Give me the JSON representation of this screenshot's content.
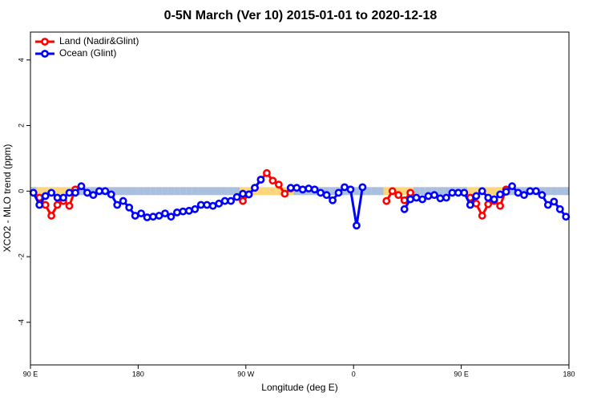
{
  "chart_data": {
    "type": "line",
    "title": "0-5N March (Ver 10)   2015-01-01 to 2020-12-18",
    "x_label": "Longitude (deg E)",
    "y_label": "XCO2 - MLO trend (ppm)",
    "x": [
      92.5,
      97.5,
      102.5,
      107.5,
      112.5,
      117.5,
      122.5,
      127.5,
      132.5,
      137.5,
      142.5,
      147.5,
      152.5,
      157.5,
      162.5,
      167.5,
      172.5,
      177.5,
      182.5,
      187.5,
      192.5,
      197.5,
      202.5,
      207.5,
      212.5,
      217.5,
      222.5,
      227.5,
      232.5,
      237.5,
      242.5,
      247.5,
      252.5,
      257.5,
      262.5,
      267.5,
      272.5,
      277.5,
      282.5,
      287.5,
      292.5,
      297.5,
      302.5,
      307.5,
      312.5,
      317.5,
      322.5,
      327.5,
      332.5,
      337.5,
      342.5,
      347.5,
      352.5,
      357.5,
      362.5,
      367.5,
      372.5,
      377.5,
      382.5,
      387.5,
      392.5,
      397.5,
      402.5,
      407.5,
      412.5,
      417.5,
      422.5,
      427.5,
      432.5,
      437.5,
      442.5,
      447.5,
      452.5,
      457.5,
      462.5,
      467.5,
      472.5,
      477.5,
      482.5,
      487.5,
      492.5,
      497.5,
      502.5,
      507.5,
      512.5,
      517.5,
      522.5,
      527.5,
      532.5,
      537.5
    ],
    "series": [
      {
        "name": "Land (Nadir&Glint)",
        "color": "#ff0000",
        "band_color": "#fcd67a",
        "values": [
          null,
          -0.2,
          -0.42,
          -0.75,
          -0.42,
          -0.3,
          -0.45,
          0.05,
          null,
          null,
          null,
          null,
          null,
          null,
          null,
          null,
          null,
          null,
          null,
          null,
          null,
          null,
          null,
          null,
          null,
          null,
          null,
          null,
          null,
          null,
          null,
          null,
          null,
          null,
          null,
          -0.3,
          -0.1,
          0.1,
          0.35,
          0.55,
          0.32,
          0.2,
          -0.08,
          0.08,
          null,
          null,
          null,
          null,
          null,
          null,
          null,
          null,
          null,
          null,
          null,
          null,
          null,
          null,
          null,
          -0.3,
          0,
          -0.12,
          -0.28,
          -0.05,
          null,
          null,
          null,
          null,
          null,
          null,
          null,
          null,
          null,
          -0.2,
          -0.38,
          -0.75,
          -0.4,
          -0.3,
          -0.45,
          0.05,
          null,
          null,
          null,
          null,
          null,
          null,
          null,
          null,
          null,
          null
        ]
      },
      {
        "name": "Ocean (Glint)",
        "color": "#0000ff",
        "band_color": "#a9bfdd",
        "values": [
          -0.05,
          -0.42,
          -0.15,
          -0.05,
          -0.2,
          -0.2,
          -0.05,
          -0.05,
          0.15,
          -0.05,
          -0.12,
          0,
          0,
          -0.1,
          -0.42,
          -0.3,
          -0.5,
          -0.75,
          -0.68,
          -0.8,
          -0.78,
          -0.75,
          -0.68,
          -0.78,
          -0.65,
          -0.62,
          -0.6,
          -0.55,
          -0.42,
          -0.42,
          -0.45,
          -0.38,
          -0.3,
          -0.3,
          -0.18,
          -0.08,
          -0.1,
          0.1,
          0.35,
          null,
          null,
          null,
          null,
          0.1,
          0.1,
          0.05,
          0.08,
          0.05,
          -0.05,
          -0.12,
          -0.28,
          -0.05,
          0.12,
          0.05,
          -1.05,
          0.12,
          null,
          null,
          null,
          null,
          null,
          null,
          -0.55,
          -0.25,
          -0.2,
          -0.25,
          -0.15,
          -0.12,
          -0.22,
          -0.2,
          -0.05,
          -0.05,
          -0.05,
          -0.42,
          -0.15,
          0,
          -0.2,
          -0.25,
          -0.1,
          -0.02,
          0.15,
          -0.05,
          -0.12,
          0,
          0,
          -0.12,
          -0.42,
          -0.32,
          -0.55,
          -0.78
        ]
      }
    ],
    "xlim": [
      90,
      540
    ],
    "xticks": [
      {
        "value": 90,
        "label": "90 E"
      },
      180,
      {
        "value": 270,
        "label": "90 W"
      },
      {
        "value": 360,
        "label": "0"
      },
      {
        "value": 450,
        "label": "90 E"
      },
      {
        "value": 540,
        "label": "180"
      }
    ],
    "ylim": [
      -5.3,
      4.85
    ],
    "yticks": [
      -4,
      -2,
      0,
      2,
      4
    ],
    "legend": "top-left"
  }
}
